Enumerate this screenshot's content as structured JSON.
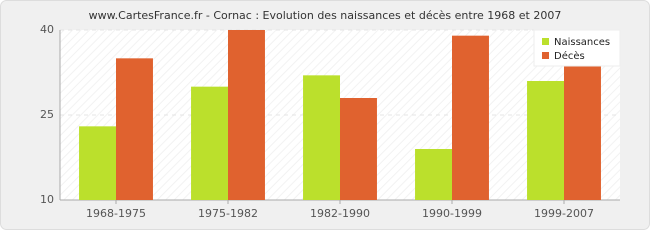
{
  "chart_data": {
    "type": "bar",
    "title": "www.CartesFrance.fr - Cornac : Evolution des naissances et décès entre 1968 et 2007",
    "categories": [
      "1968-1975",
      "1975-1982",
      "1982-1990",
      "1990-1999",
      "1999-2007"
    ],
    "series": [
      {
        "name": "Naissances",
        "color": "#bbe02c",
        "values": [
          23,
          30,
          32,
          19,
          31
        ]
      },
      {
        "name": "Décès",
        "color": "#e0622f",
        "values": [
          35,
          40,
          28,
          39,
          34
        ]
      }
    ],
    "ylim": [
      10,
      40
    ],
    "yticks": [
      10,
      25,
      40
    ],
    "grid": true,
    "legend": "top-right"
  }
}
